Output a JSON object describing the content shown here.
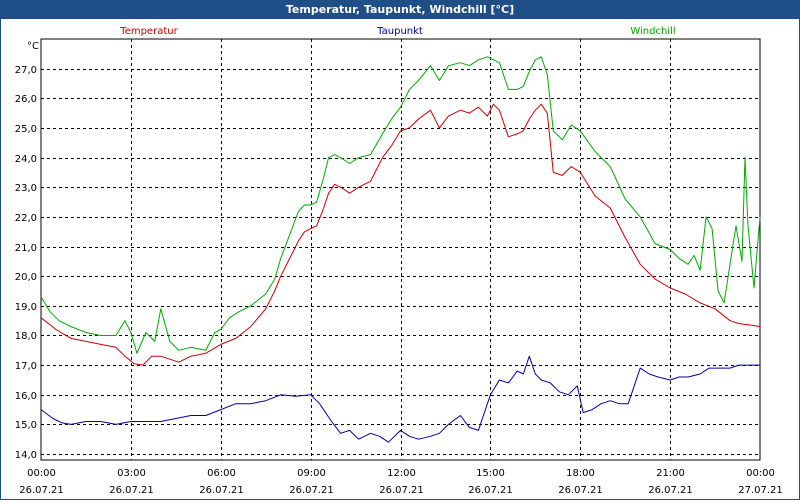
{
  "window": {
    "title": "Temperatur, Taupunkt, Windchill [°C]"
  },
  "chart_data": {
    "type": "line",
    "title": "Temperatur, Taupunkt, Windchill [°C]",
    "ylabel": "°C",
    "ylim": [
      13.8,
      28.0
    ],
    "xlim": [
      0,
      24
    ],
    "grid": true,
    "y_ticks": [
      "14,0",
      "15,0",
      "16,0",
      "17,0",
      "18,0",
      "19,0",
      "20,0",
      "21,0",
      "22,0",
      "23,0",
      "24,0",
      "25,0",
      "26,0",
      "27,0"
    ],
    "y_tick_values": [
      14,
      15,
      16,
      17,
      18,
      19,
      20,
      21,
      22,
      23,
      24,
      25,
      26,
      27
    ],
    "x_ticks": [
      {
        "h": 0,
        "time": "00:00",
        "date": "26.07.21"
      },
      {
        "h": 3,
        "time": "03:00",
        "date": "26.07.21"
      },
      {
        "h": 6,
        "time": "06:00",
        "date": "26.07.21"
      },
      {
        "h": 9,
        "time": "09:00",
        "date": "26.07.21"
      },
      {
        "h": 12,
        "time": "12:00",
        "date": "26.07.21"
      },
      {
        "h": 15,
        "time": "15:00",
        "date": "26.07.21"
      },
      {
        "h": 18,
        "time": "18:00",
        "date": "26.07.21"
      },
      {
        "h": 21,
        "time": "21:00",
        "date": "26.07.21"
      },
      {
        "h": 24,
        "time": "00:00",
        "date": "27.07.21"
      }
    ],
    "series": [
      {
        "name": "Temperatur",
        "color": "#cc0000",
        "x": [
          0,
          0.5,
          1,
          1.5,
          2,
          2.5,
          2.8,
          3.1,
          3.4,
          3.7,
          4,
          4.3,
          4.6,
          5,
          5.5,
          6,
          6.5,
          7,
          7.5,
          7.8,
          8,
          8.3,
          8.6,
          8.8,
          9,
          9.2,
          9.4,
          9.6,
          9.8,
          10,
          10.3,
          10.6,
          11,
          11.4,
          11.7,
          12,
          12.3,
          12.6,
          13,
          13.3,
          13.6,
          14,
          14.3,
          14.6,
          14.9,
          15.1,
          15.3,
          15.6,
          15.9,
          16.1,
          16.3,
          16.5,
          16.7,
          16.9,
          17.1,
          17.4,
          17.7,
          18,
          18.5,
          19,
          19.5,
          20,
          20.5,
          21,
          21.5,
          22,
          22.5,
          23,
          23.3,
          23.7,
          24
        ],
        "values": [
          18.6,
          18.2,
          17.9,
          17.8,
          17.7,
          17.6,
          17.3,
          17.05,
          17.0,
          17.3,
          17.3,
          17.2,
          17.1,
          17.3,
          17.4,
          17.7,
          17.9,
          18.3,
          18.9,
          19.5,
          20.0,
          20.6,
          21.2,
          21.5,
          21.6,
          21.7,
          22.2,
          22.8,
          23.1,
          23.0,
          22.8,
          23.0,
          23.2,
          24.0,
          24.4,
          24.9,
          25.0,
          25.3,
          25.6,
          25.0,
          25.4,
          25.6,
          25.5,
          25.7,
          25.4,
          25.8,
          25.6,
          24.7,
          24.8,
          24.9,
          25.3,
          25.6,
          25.8,
          25.5,
          23.5,
          23.4,
          23.7,
          23.5,
          22.7,
          22.3,
          21.3,
          20.4,
          19.9,
          19.6,
          19.4,
          19.1,
          18.9,
          18.5,
          18.4,
          18.35,
          18.3
        ]
      },
      {
        "name": "Taupunkt",
        "color": "#0000aa",
        "x": [
          0,
          0.4,
          0.7,
          1,
          1.5,
          2,
          2.5,
          3,
          3.5,
          4,
          4.5,
          5,
          5.5,
          6,
          6.5,
          7,
          7.5,
          8,
          8.5,
          9,
          9.3,
          9.7,
          10,
          10.3,
          10.6,
          11,
          11.3,
          11.6,
          12,
          12.3,
          12.6,
          13,
          13.3,
          13.6,
          14,
          14.3,
          14.6,
          15,
          15.3,
          15.6,
          15.9,
          16.1,
          16.3,
          16.5,
          16.7,
          17,
          17.3,
          17.6,
          17.9,
          18.1,
          18.4,
          18.7,
          19,
          19.3,
          19.6,
          20,
          20.3,
          20.6,
          21,
          21.3,
          21.6,
          22,
          22.3,
          22.6,
          23,
          23.3,
          23.6,
          24
        ],
        "values": [
          15.5,
          15.2,
          15.05,
          15.0,
          15.1,
          15.1,
          15.0,
          15.1,
          15.1,
          15.1,
          15.2,
          15.3,
          15.3,
          15.5,
          15.7,
          15.7,
          15.8,
          16.0,
          15.95,
          16.0,
          15.7,
          15.1,
          14.7,
          14.8,
          14.5,
          14.7,
          14.6,
          14.4,
          14.8,
          14.6,
          14.5,
          14.6,
          14.7,
          15.0,
          15.3,
          14.9,
          14.8,
          16.0,
          16.5,
          16.4,
          16.8,
          16.7,
          17.3,
          16.7,
          16.5,
          16.4,
          16.1,
          16.0,
          16.3,
          15.4,
          15.5,
          15.7,
          15.8,
          15.7,
          15.7,
          16.9,
          16.7,
          16.6,
          16.5,
          16.6,
          16.6,
          16.7,
          16.9,
          16.9,
          16.9,
          17.0,
          17.0,
          17.0
        ]
      },
      {
        "name": "Windchill",
        "color": "#00aa00",
        "x": [
          0,
          0.3,
          0.6,
          1,
          1.5,
          2,
          2.5,
          2.8,
          3,
          3.2,
          3.5,
          3.8,
          4,
          4.3,
          4.6,
          5,
          5.5,
          5.8,
          6,
          6.3,
          6.6,
          7,
          7.5,
          7.8,
          8,
          8.3,
          8.6,
          8.8,
          9,
          9.2,
          9.4,
          9.6,
          9.8,
          10,
          10.3,
          10.6,
          11,
          11.4,
          11.7,
          12,
          12.3,
          12.6,
          13,
          13.3,
          13.6,
          14,
          14.3,
          14.6,
          14.9,
          15.1,
          15.3,
          15.6,
          15.9,
          16.1,
          16.3,
          16.5,
          16.7,
          16.9,
          17.1,
          17.4,
          17.7,
          18,
          18.5,
          19,
          19.5,
          20,
          20.5,
          21,
          21.3,
          21.6,
          21.8,
          22,
          22.2,
          22.4,
          22.6,
          22.8,
          23,
          23.2,
          23.4,
          23.5,
          23.6,
          23.8,
          24
        ],
        "values": [
          19.3,
          18.8,
          18.5,
          18.3,
          18.1,
          18.0,
          18.0,
          18.5,
          18.1,
          17.4,
          18.1,
          17.8,
          18.9,
          17.8,
          17.5,
          17.6,
          17.5,
          18.1,
          18.2,
          18.6,
          18.8,
          19.0,
          19.4,
          19.9,
          20.6,
          21.4,
          22.2,
          22.4,
          22.4,
          22.5,
          23.2,
          24.0,
          24.1,
          24.0,
          23.8,
          24.0,
          24.1,
          24.8,
          25.3,
          25.7,
          26.3,
          26.6,
          27.1,
          26.6,
          27.1,
          27.2,
          27.1,
          27.3,
          27.4,
          27.3,
          27.2,
          26.3,
          26.3,
          26.4,
          26.9,
          27.3,
          27.4,
          26.8,
          24.9,
          24.6,
          25.1,
          24.9,
          24.2,
          23.7,
          22.6,
          22.0,
          21.1,
          20.9,
          20.6,
          20.4,
          20.7,
          20.2,
          22.0,
          21.6,
          19.5,
          19.1,
          20.4,
          21.7,
          20.5,
          24.0,
          21.7,
          19.6,
          22.0
        ]
      }
    ]
  }
}
